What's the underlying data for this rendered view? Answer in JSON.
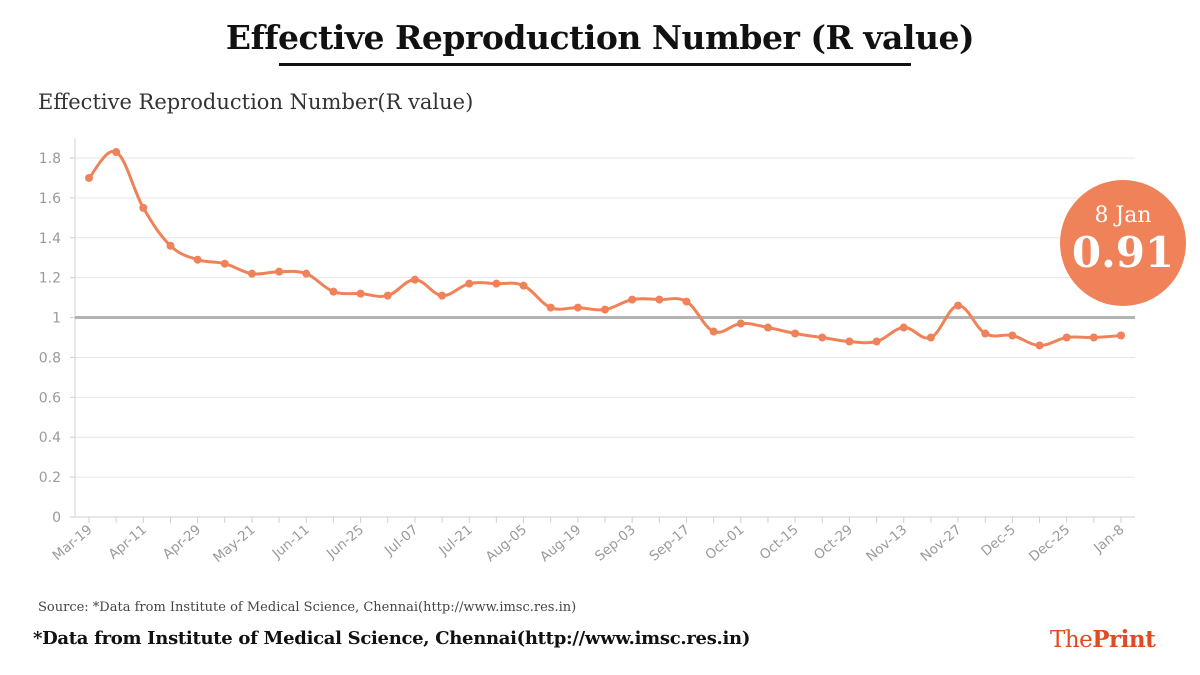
{
  "header": {
    "title": "Effective Reproduction Number (R value)"
  },
  "chart_data": {
    "type": "line",
    "title": "Effective Reproduction Number(R value)",
    "xlabel": "",
    "ylabel": "",
    "ylim": [
      0,
      1.8
    ],
    "yticks": [
      0,
      0.2,
      0.4,
      0.6,
      0.8,
      1,
      1.2,
      1.4,
      1.6,
      1.8
    ],
    "reference_line": 1,
    "tick_labels": [
      "Mar-19",
      "Apr-11",
      "Apr-29",
      "May-21",
      "Jun-11",
      "Jun-25",
      "Jul-07",
      "Jul-21",
      "Aug-05",
      "Aug-19",
      "Sep-03",
      "Sep-17",
      "Oct-01",
      "Oct-15",
      "Oct-29",
      "Nov-13",
      "Nov-27",
      "Dec-5",
      "Dec-25",
      "Jan-8"
    ],
    "series": [
      {
        "name": "R value",
        "color": "#f08259",
        "values": [
          1.7,
          1.83,
          1.55,
          1.36,
          1.29,
          1.27,
          1.22,
          1.23,
          1.22,
          1.13,
          1.12,
          1.11,
          1.19,
          1.11,
          1.17,
          1.17,
          1.16,
          1.05,
          1.05,
          1.04,
          1.09,
          1.09,
          1.08,
          0.93,
          0.97,
          0.95,
          0.92,
          0.9,
          0.88,
          0.88,
          0.95,
          0.9,
          1.06,
          0.92,
          0.91,
          0.86,
          0.9,
          0.9,
          0.91
        ]
      }
    ]
  },
  "callout": {
    "date": "8 Jan",
    "value": "0.91"
  },
  "source": "Source: *Data from Institute of Medical Science, Chennai(http://www.imsc.res.in)",
  "footnote": "*Data from Institute of Medical Science, Chennai(http://www.imsc.res.in)",
  "logo": {
    "part1": "The",
    "part2": "Print"
  }
}
